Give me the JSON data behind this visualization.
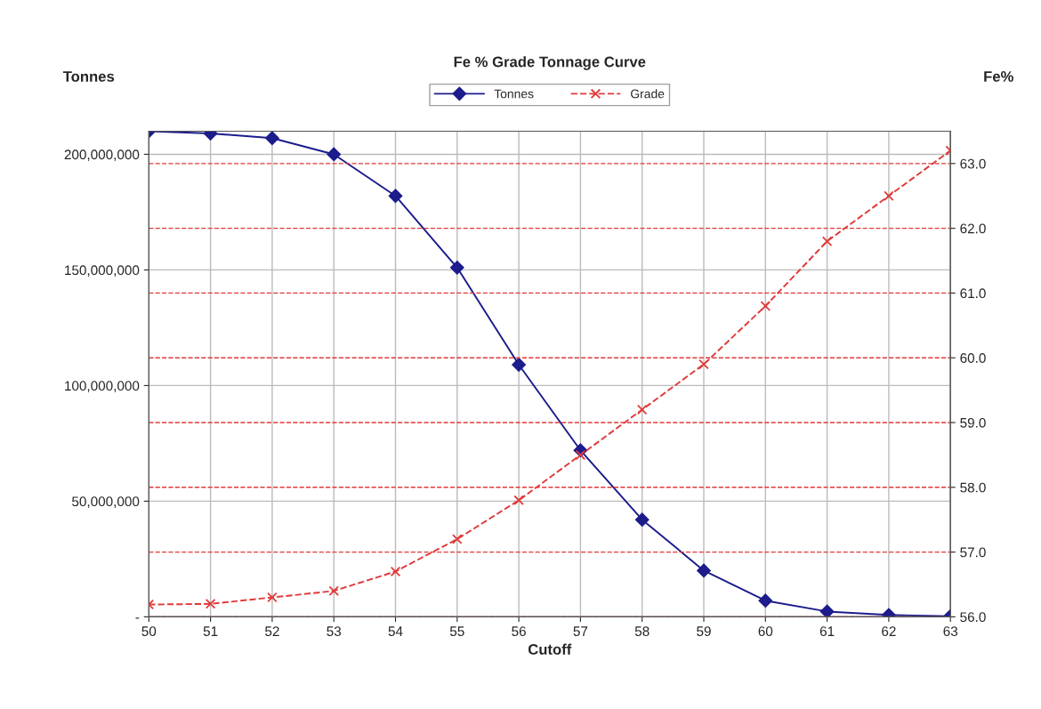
{
  "chart_data": {
    "type": "line",
    "title": "Fe % Grade Tonnage Curve",
    "xlabel": "Cutoff",
    "ylabel": "Tonnes",
    "y2label": "Fe%",
    "x": [
      50,
      51,
      52,
      53,
      54,
      55,
      56,
      57,
      58,
      59,
      60,
      61,
      62,
      63
    ],
    "series": [
      {
        "name": "Tonnes",
        "color": "#1c1c8c",
        "marker": "diamond",
        "line_style": "solid",
        "values": [
          210000000,
          209000000,
          207000000,
          200000000,
          182000000,
          151000000,
          109000000,
          72000000,
          42000000,
          20000000,
          7000000,
          2300000,
          800000,
          300000
        ]
      },
      {
        "name": "Grade",
        "color": "#e03a3a",
        "marker": "cross",
        "line_style": "dashed",
        "axis": "y2",
        "values": [
          56.19,
          56.2,
          56.3,
          56.4,
          56.7,
          57.2,
          57.8,
          58.5,
          59.2,
          59.9,
          60.8,
          61.8,
          62.5,
          63.2
        ]
      }
    ],
    "xlim": [
      50,
      63
    ],
    "xticks": [
      50,
      51,
      52,
      53,
      54,
      55,
      56,
      57,
      58,
      59,
      60,
      61,
      62,
      63
    ],
    "ylim": [
      0,
      210000000
    ],
    "yticks": [
      {
        "value": 0,
        "label": "-"
      },
      {
        "value": 50000000,
        "label": "50,000,000"
      },
      {
        "value": 100000000,
        "label": "100,000,000"
      },
      {
        "value": 150000000,
        "label": "150,000,000"
      },
      {
        "value": 200000000,
        "label": "200,000,000"
      }
    ],
    "y2lim": [
      56,
      63.5
    ],
    "y2ticks": [
      {
        "value": 56,
        "label": "56.0"
      },
      {
        "value": 57,
        "label": "57.0"
      },
      {
        "value": 58,
        "label": "58.0"
      },
      {
        "value": 59,
        "label": "59.0"
      },
      {
        "value": 60,
        "label": "60.0"
      },
      {
        "value": 61,
        "label": "61.0"
      },
      {
        "value": 62,
        "label": "62.0"
      },
      {
        "value": 63,
        "label": "63.0"
      }
    ],
    "grid": true,
    "legend": "top"
  }
}
